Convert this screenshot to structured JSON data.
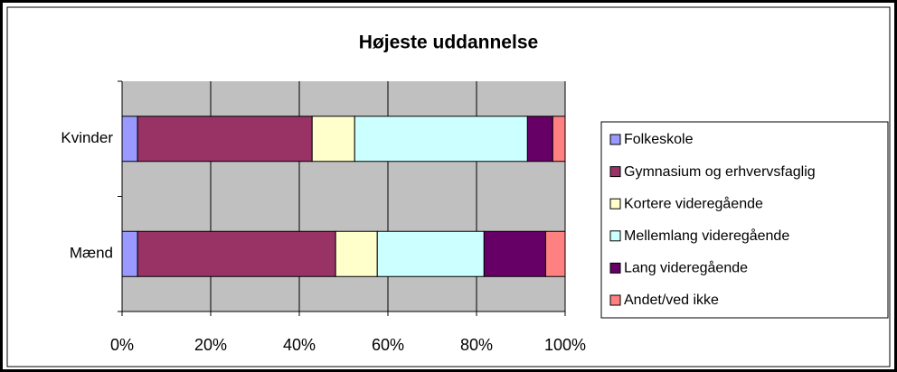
{
  "chart_data": {
    "type": "bar",
    "orientation": "horizontal",
    "stacked": "percent",
    "title": "Højeste uddannelse",
    "categories": [
      "Kvinder",
      "Mænd"
    ],
    "series": [
      {
        "name": "Folkeskole",
        "color": "#9999ff",
        "values": [
          3.5,
          3.5
        ]
      },
      {
        "name": "Gymnasium og erhvervsfaglig",
        "color": "#993366",
        "values": [
          39.4,
          44.7
        ]
      },
      {
        "name": "Kortere videregående",
        "color": "#ffffcc",
        "values": [
          9.6,
          9.4
        ]
      },
      {
        "name": "Mellemlang videregående",
        "color": "#ccffff",
        "values": [
          39.0,
          24.1
        ]
      },
      {
        "name": "Lang videregående",
        "color": "#660066",
        "values": [
          5.7,
          13.9
        ]
      },
      {
        "name": "Andet/ved ikke",
        "color": "#ff8080",
        "values": [
          2.8,
          4.4
        ]
      }
    ],
    "xlim": [
      0,
      100
    ],
    "xticks": [
      {
        "value": 0,
        "label": "0%"
      },
      {
        "value": 20,
        "label": "20%"
      },
      {
        "value": 40,
        "label": "40%"
      },
      {
        "value": 60,
        "label": "60%"
      },
      {
        "value": 80,
        "label": "80%"
      },
      {
        "value": 100,
        "label": "100%"
      }
    ],
    "grid": true,
    "legend": "right"
  }
}
